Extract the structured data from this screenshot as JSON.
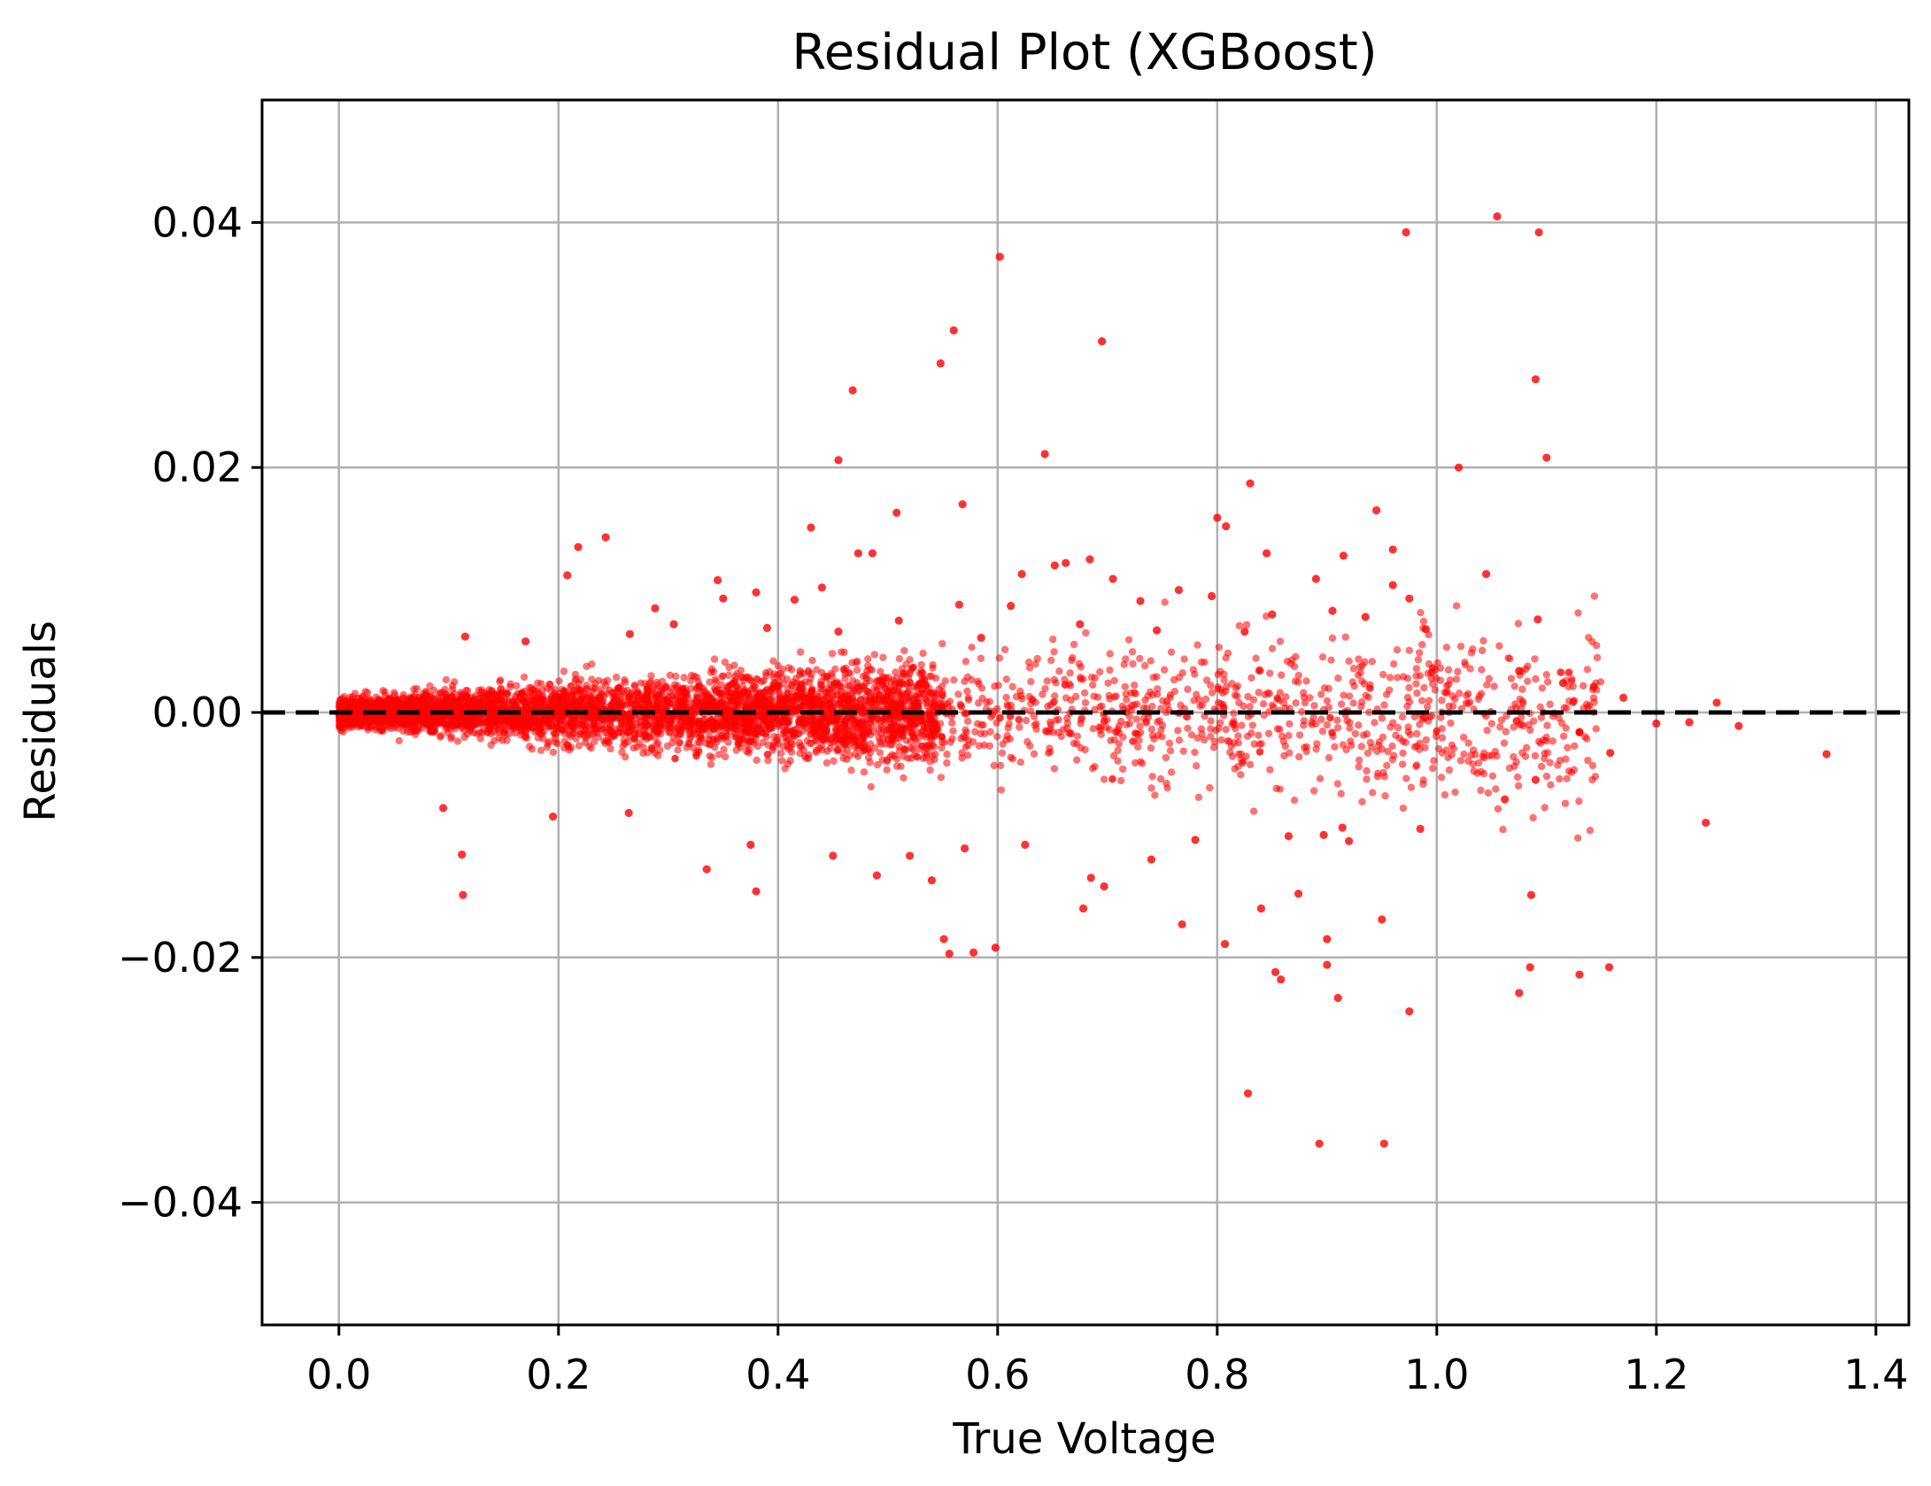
{
  "chart_data": {
    "type": "scatter",
    "title": "Residual Plot (XGBoost)",
    "xlabel": "True Voltage",
    "ylabel": "Residuals",
    "xlim": [
      -0.07,
      1.43
    ],
    "ylim": [
      -0.05,
      0.05
    ],
    "xticks": [
      0.0,
      0.2,
      0.4,
      0.6,
      0.8,
      1.0,
      1.2,
      1.4
    ],
    "yticks": [
      -0.04,
      -0.02,
      0.0,
      0.02,
      0.04
    ],
    "xtick_labels": [
      "0.0",
      "0.2",
      "0.4",
      "0.6",
      "0.8",
      "1.0",
      "1.2",
      "1.4"
    ],
    "ytick_labels": [
      "−0.04",
      "−0.02",
      "0.00",
      "0.02",
      "0.04"
    ],
    "grid": true,
    "reference_line": {
      "y": 0,
      "style": "dashed",
      "color": "#000000"
    },
    "point_color": "#ff0000",
    "series": [
      {
        "points": [
          [
            1.055,
            0.0405
          ],
          [
            0.972,
            0.0392
          ],
          [
            1.093,
            0.0392
          ],
          [
            0.602,
            0.0372
          ],
          [
            0.56,
            0.0312
          ],
          [
            0.695,
            0.0303
          ],
          [
            0.548,
            0.0285
          ],
          [
            1.09,
            0.0272
          ],
          [
            0.468,
            0.0263
          ],
          [
            0.643,
            0.0211
          ],
          [
            0.455,
            0.0206
          ],
          [
            1.1,
            0.0208
          ],
          [
            1.02,
            0.02
          ],
          [
            0.83,
            0.0187
          ],
          [
            0.568,
            0.017
          ],
          [
            0.508,
            0.0163
          ],
          [
            0.8,
            0.0159
          ],
          [
            0.945,
            0.0165
          ],
          [
            0.808,
            0.0152
          ],
          [
            0.43,
            0.0151
          ],
          [
            0.243,
            0.0143
          ],
          [
            0.218,
            0.0135
          ],
          [
            0.96,
            0.0133
          ],
          [
            0.845,
            0.013
          ],
          [
            0.473,
            0.013
          ],
          [
            0.486,
            0.013
          ],
          [
            0.662,
            0.0122
          ],
          [
            0.684,
            0.0125
          ],
          [
            0.915,
            0.0128
          ],
          [
            0.208,
            0.0112
          ],
          [
            0.622,
            0.0113
          ],
          [
            0.652,
            0.012
          ],
          [
            1.045,
            0.0113
          ],
          [
            0.345,
            0.0108
          ],
          [
            0.705,
            0.0109
          ],
          [
            0.89,
            0.0109
          ],
          [
            0.38,
            0.0098
          ],
          [
            0.44,
            0.0102
          ],
          [
            0.765,
            0.01
          ],
          [
            0.96,
            0.0104
          ],
          [
            0.975,
            0.0093
          ],
          [
            0.288,
            0.0085
          ],
          [
            0.35,
            0.0093
          ],
          [
            0.415,
            0.0092
          ],
          [
            0.565,
            0.0088
          ],
          [
            0.612,
            0.0087
          ],
          [
            0.73,
            0.0091
          ],
          [
            0.795,
            0.0095
          ],
          [
            1.092,
            0.0076
          ],
          [
            0.305,
            0.0072
          ],
          [
            0.51,
            0.0075
          ],
          [
            0.675,
            0.0072
          ],
          [
            0.85,
            0.008
          ],
          [
            0.905,
            0.0083
          ],
          [
            0.935,
            0.0078
          ],
          [
            0.115,
            0.0062
          ],
          [
            0.17,
            0.0058
          ],
          [
            0.265,
            0.0064
          ],
          [
            0.39,
            0.0069
          ],
          [
            0.455,
            0.0066
          ],
          [
            0.585,
            0.0061
          ],
          [
            0.745,
            0.0067
          ],
          [
            0.825,
            0.0066
          ],
          [
            0.99,
            0.0068
          ],
          [
            1.075,
            0.0034
          ],
          [
            1.115,
            0.0024
          ],
          [
            1.143,
            0.0021
          ],
          [
            1.17,
            0.0012
          ],
          [
            1.255,
            0.0008
          ],
          [
            1.2,
            -0.0009
          ],
          [
            1.23,
            -0.0008
          ],
          [
            1.275,
            -0.0011
          ],
          [
            1.13,
            -0.0016
          ],
          [
            1.158,
            -0.0033
          ],
          [
            1.355,
            -0.0034
          ],
          [
            1.09,
            -0.0055
          ],
          [
            1.062,
            -0.0071
          ],
          [
            1.245,
            -0.009
          ],
          [
            0.985,
            -0.0095
          ],
          [
            0.914,
            -0.0094
          ],
          [
            0.92,
            -0.0105
          ],
          [
            0.897,
            -0.01
          ],
          [
            0.865,
            -0.0101
          ],
          [
            0.78,
            -0.0104
          ],
          [
            0.74,
            -0.012
          ],
          [
            0.685,
            -0.0135
          ],
          [
            0.625,
            -0.0108
          ],
          [
            0.57,
            -0.0111
          ],
          [
            0.52,
            -0.0117
          ],
          [
            0.45,
            -0.0117
          ],
          [
            0.375,
            -0.0108
          ],
          [
            0.335,
            -0.0128
          ],
          [
            0.38,
            -0.0146
          ],
          [
            0.112,
            -0.0116
          ],
          [
            0.113,
            -0.0149
          ],
          [
            0.095,
            -0.0078
          ],
          [
            0.195,
            -0.0085
          ],
          [
            0.264,
            -0.0082
          ],
          [
            0.54,
            -0.0137
          ],
          [
            0.49,
            -0.0133
          ],
          [
            0.697,
            -0.0142
          ],
          [
            0.678,
            -0.016
          ],
          [
            0.84,
            -0.016
          ],
          [
            0.768,
            -0.0173
          ],
          [
            0.551,
            -0.0185
          ],
          [
            0.556,
            -0.0197
          ],
          [
            0.578,
            -0.0196
          ],
          [
            0.598,
            -0.0192
          ],
          [
            0.807,
            -0.0189
          ],
          [
            0.95,
            -0.0169
          ],
          [
            0.9,
            -0.0185
          ],
          [
            1.086,
            -0.0149
          ],
          [
            0.874,
            -0.0148
          ],
          [
            0.853,
            -0.0212
          ],
          [
            0.858,
            -0.0218
          ],
          [
            0.9,
            -0.0206
          ],
          [
            0.91,
            -0.0233
          ],
          [
            0.975,
            -0.0244
          ],
          [
            1.085,
            -0.0208
          ],
          [
            1.075,
            -0.0229
          ],
          [
            1.13,
            -0.0214
          ],
          [
            1.157,
            -0.0208
          ],
          [
            0.828,
            -0.0311
          ],
          [
            0.893,
            -0.0352
          ],
          [
            0.952,
            -0.0352
          ]
        ]
      }
    ]
  }
}
